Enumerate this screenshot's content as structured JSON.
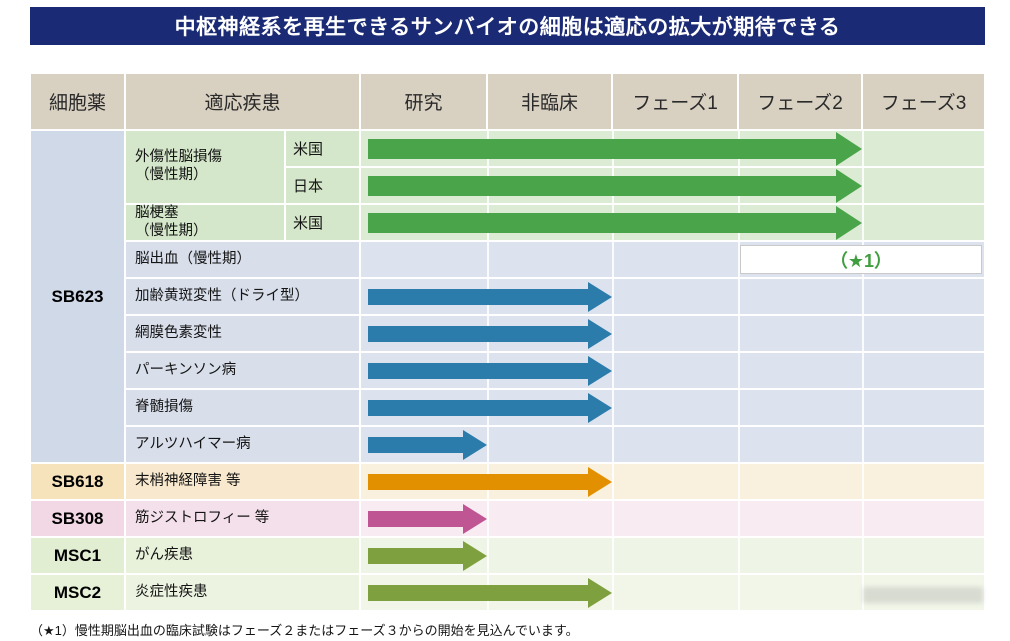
{
  "title": "中枢神経系を再生できるサンバイオの細胞は適応の拡大が期待できる",
  "footnote": "（★1）慢性期脳出血の臨床試験はフェーズ２またはフェーズ３からの開始を見込んでいます。",
  "header": {
    "drug": "細胞薬",
    "indication": "適応疾患",
    "phases": [
      "研究",
      "非臨床",
      "フェーズ1",
      "フェーズ2",
      "フェーズ3"
    ]
  },
  "colors": {
    "title_bg": "#1b2a74",
    "title_text": "#ffffff",
    "header_bg": "#d8d0c1",
    "star_green": "#3f9e3f",
    "grid_line": "#ffffff"
  },
  "drug_colors": {
    "SB623": "#cfd9e7",
    "SB618": "#f6e2bb",
    "SB308": "#f1d8e4",
    "MSC1": "#e2eed2",
    "MSC2": "#e6f1d7"
  },
  "themes": {
    "green": {
      "label": "#d5e7ca",
      "timeline": "#dcebd3",
      "arrow": "#4aa44a"
    },
    "blue": {
      "label": "#d8dfeb",
      "timeline": "#dde3ee",
      "arrow": "#2b7cab"
    },
    "orange": {
      "label": "#f8e9ce",
      "timeline": "#faf0de",
      "arrow": "#e39000"
    },
    "pink": {
      "label": "#f4e0ea",
      "timeline": "#f8ecf2",
      "arrow": "#c05594"
    },
    "olive1": {
      "label": "#e8f1da",
      "timeline": "#eff5e6",
      "arrow": "#7fa03f"
    },
    "olive2": {
      "label": "#ecf3e0",
      "timeline": "#f1f6e9",
      "arrow": "#7fa03f"
    }
  },
  "chart_data": {
    "type": "table",
    "title": "中枢神経系を再生できるサンバイオの細胞は適応の拡大が期待できる",
    "columns": [
      "細胞薬",
      "適応疾患",
      "研究",
      "非臨床",
      "フェーズ1",
      "フェーズ2",
      "フェーズ3"
    ],
    "rows": [
      {
        "drug": "SB623",
        "indication": "外傷性脳損傷\n（慢性期）",
        "region": "米国",
        "theme": "green",
        "phase_reached": "フェーズ2"
      },
      {
        "drug": "SB623",
        "indication": "外傷性脳損傷\n（慢性期）",
        "region": "日本",
        "theme": "green",
        "phase_reached": "フェーズ2"
      },
      {
        "drug": "SB623",
        "indication": "脳梗塞\n（慢性期）",
        "region": "米国",
        "theme": "green",
        "phase_reached": "フェーズ2"
      },
      {
        "drug": "SB623",
        "indication": "脳出血（慢性期）",
        "theme": "blue",
        "phase_reached": null,
        "annotation": "（★1）"
      },
      {
        "drug": "SB623",
        "indication": "加齢黄斑変性（ドライ型）",
        "theme": "blue",
        "phase_reached": "非臨床"
      },
      {
        "drug": "SB623",
        "indication": "網膜色素変性",
        "theme": "blue",
        "phase_reached": "非臨床"
      },
      {
        "drug": "SB623",
        "indication": "パーキンソン病",
        "theme": "blue",
        "phase_reached": "非臨床"
      },
      {
        "drug": "SB623",
        "indication": "脊髄損傷",
        "theme": "blue",
        "phase_reached": "非臨床"
      },
      {
        "drug": "SB623",
        "indication": "アルツハイマー病",
        "theme": "blue",
        "phase_reached": "研究"
      },
      {
        "drug": "SB618",
        "indication": "末梢神経障害 等",
        "theme": "orange",
        "phase_reached": "非臨床"
      },
      {
        "drug": "SB308",
        "indication": "筋ジストロフィー 等",
        "theme": "pink",
        "phase_reached": "研究"
      },
      {
        "drug": "MSC1",
        "indication": "がん疾患",
        "theme": "olive1",
        "phase_reached": "研究"
      },
      {
        "drug": "MSC2",
        "indication": "炎症性疾患",
        "theme": "olive2",
        "phase_reached": "非臨床"
      }
    ]
  }
}
